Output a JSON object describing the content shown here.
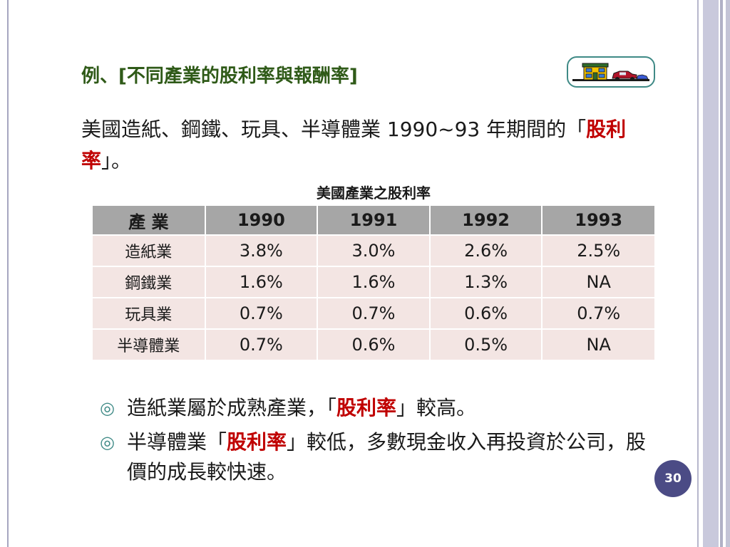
{
  "slide": {
    "title": "例、[不同產業的股利率與報酬率]",
    "intro_part1": "美國造紙、鋼鐵、玩具、半導體業 1990~93 年期間的「",
    "intro_highlight": "股利率",
    "intro_part2": "」。",
    "page_number": "30"
  },
  "table": {
    "caption": "美國產業之股利率",
    "headers": [
      "產 業",
      "1990",
      "1991",
      "1992",
      "1993"
    ],
    "rows": [
      [
        "造紙業",
        "3.8%",
        "3.0%",
        "2.6%",
        "2.5%"
      ],
      [
        "鋼鐵業",
        "1.6%",
        "1.6%",
        "1.3%",
        "NA"
      ],
      [
        "玩具業",
        "0.7%",
        "0.7%",
        "0.6%",
        "0.7%"
      ],
      [
        "半導體業",
        "0.7%",
        "0.6%",
        "0.5%",
        "NA"
      ]
    ]
  },
  "bullets": [
    {
      "mark": "◎",
      "before": "造紙業屬於成熟產業，「",
      "highlight": "股利率",
      "after": "」較高。"
    },
    {
      "mark": "◎",
      "before": "半導體業「",
      "highlight": "股利率",
      "after": "」較低，多數現金收入再投資於公司，股價的成長較快速。"
    }
  ],
  "icons": {
    "home_button": "home-house-car-icon"
  },
  "colors": {
    "title": "#2f5a18",
    "highlight": "#c00000",
    "header_bg": "#a6a6a6",
    "cell_bg": "#f3e5e3",
    "page_badge": "#4b4b85",
    "accent": "#3f8a86"
  }
}
